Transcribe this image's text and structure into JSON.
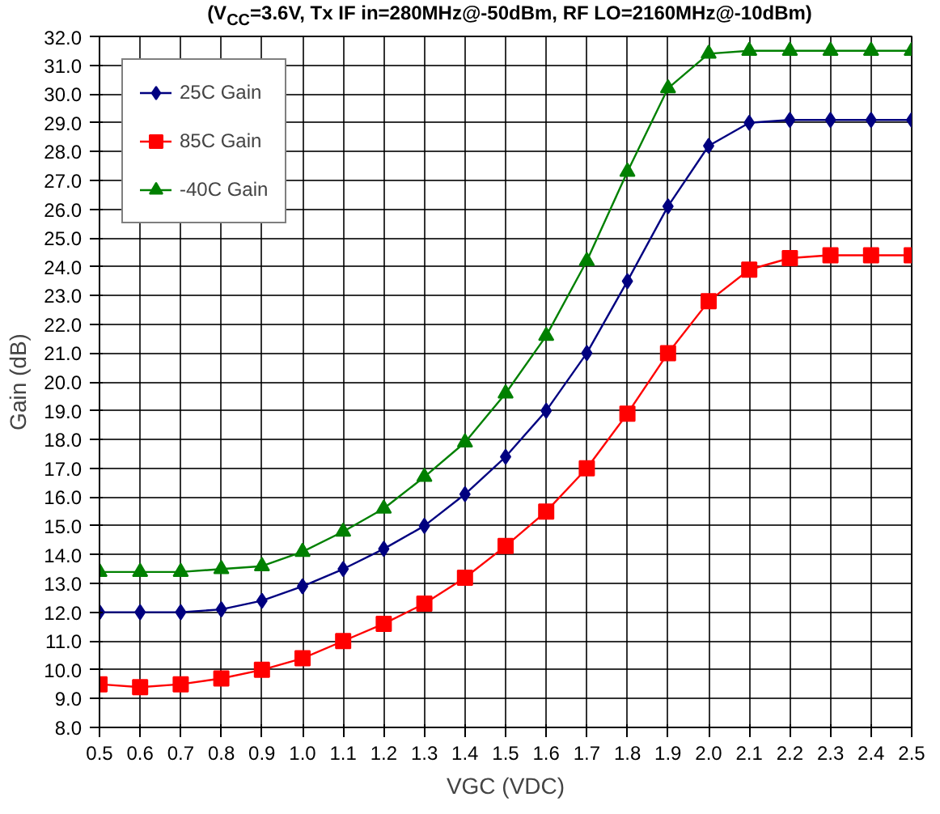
{
  "chart_data": {
    "type": "line",
    "title": "(V$_{CC}$=3.6V, Tx IF in=280MHz@-50dBm, RF LO=2160MHz@-10dBm)",
    "xlabel": "VGC (VDC)",
    "ylabel": "Gain (dB)",
    "x": [
      0.5,
      0.6,
      0.7,
      0.8,
      0.9,
      1.0,
      1.1,
      1.2,
      1.3,
      1.4,
      1.5,
      1.6,
      1.7,
      1.8,
      1.9,
      2.0,
      2.1,
      2.2,
      2.3,
      2.4,
      2.5
    ],
    "series": [
      {
        "name": "25C Gain",
        "color": "#000080",
        "marker": "diamond",
        "values": [
          12.0,
          12.0,
          12.0,
          12.1,
          12.4,
          12.9,
          13.5,
          14.2,
          15.0,
          16.1,
          17.4,
          19.0,
          21.0,
          23.5,
          26.1,
          28.2,
          29.0,
          29.1,
          29.1,
          29.1,
          29.1
        ]
      },
      {
        "name": "85C Gain",
        "color": "#ff0000",
        "marker": "square",
        "values": [
          9.5,
          9.4,
          9.5,
          9.7,
          10.0,
          10.4,
          11.0,
          11.6,
          12.3,
          13.2,
          14.3,
          15.5,
          17.0,
          18.9,
          21.0,
          22.8,
          23.9,
          24.3,
          24.4,
          24.4,
          24.4
        ]
      },
      {
        "name": "-40C Gain",
        "color": "#008000",
        "marker": "triangle",
        "values": [
          13.4,
          13.4,
          13.4,
          13.5,
          13.6,
          14.1,
          14.8,
          15.6,
          16.7,
          17.9,
          19.6,
          21.6,
          24.2,
          27.3,
          30.2,
          31.4,
          31.5,
          31.5,
          31.5,
          31.5,
          31.5
        ]
      }
    ],
    "xlim": [
      0.5,
      2.5
    ],
    "ylim": [
      8,
      32
    ],
    "xticks": [
      0.5,
      0.6,
      0.7,
      0.8,
      0.9,
      {
        "value": 1,
        "label": "1.0"
      },
      1.1,
      1.2,
      1.3,
      1.4,
      1.5,
      1.6,
      1.7,
      1.8,
      1.9,
      {
        "value": 2,
        "label": "2.0"
      },
      2.1,
      2.2,
      2.3,
      2.4,
      2.5
    ],
    "yticks": [
      {
        "value": 8,
        "label": "8.0"
      },
      {
        "value": 9,
        "label": "9.0"
      },
      {
        "value": 10,
        "label": "10.0"
      },
      {
        "value": 11,
        "label": "11.0"
      },
      {
        "value": 12,
        "label": "12.0"
      },
      {
        "value": 13,
        "label": "13.0"
      },
      {
        "value": 14,
        "label": "14.0"
      },
      {
        "value": 15,
        "label": "15.0"
      },
      {
        "value": 16,
        "label": "16.0"
      },
      {
        "value": 17,
        "label": "17.0"
      },
      {
        "value": 18,
        "label": "18.0"
      },
      {
        "value": 19,
        "label": "19.0"
      },
      {
        "value": 20,
        "label": "20.0"
      },
      {
        "value": 21,
        "label": "21.0"
      },
      {
        "value": 22,
        "label": "22.0"
      },
      {
        "value": 23,
        "label": "23.0"
      },
      {
        "value": 24,
        "label": "24.0"
      },
      {
        "value": 25,
        "label": "25.0"
      },
      {
        "value": 26,
        "label": "26.0"
      },
      {
        "value": 27,
        "label": "27.0"
      },
      {
        "value": 28,
        "label": "28.0"
      },
      {
        "value": 29,
        "label": "29.0"
      },
      {
        "value": 30,
        "label": "30.0"
      },
      {
        "value": 31,
        "label": "31.0"
      },
      {
        "value": 32,
        "label": "32.0"
      }
    ],
    "grid": true,
    "legend": "top left",
    "line_style": "solid"
  }
}
